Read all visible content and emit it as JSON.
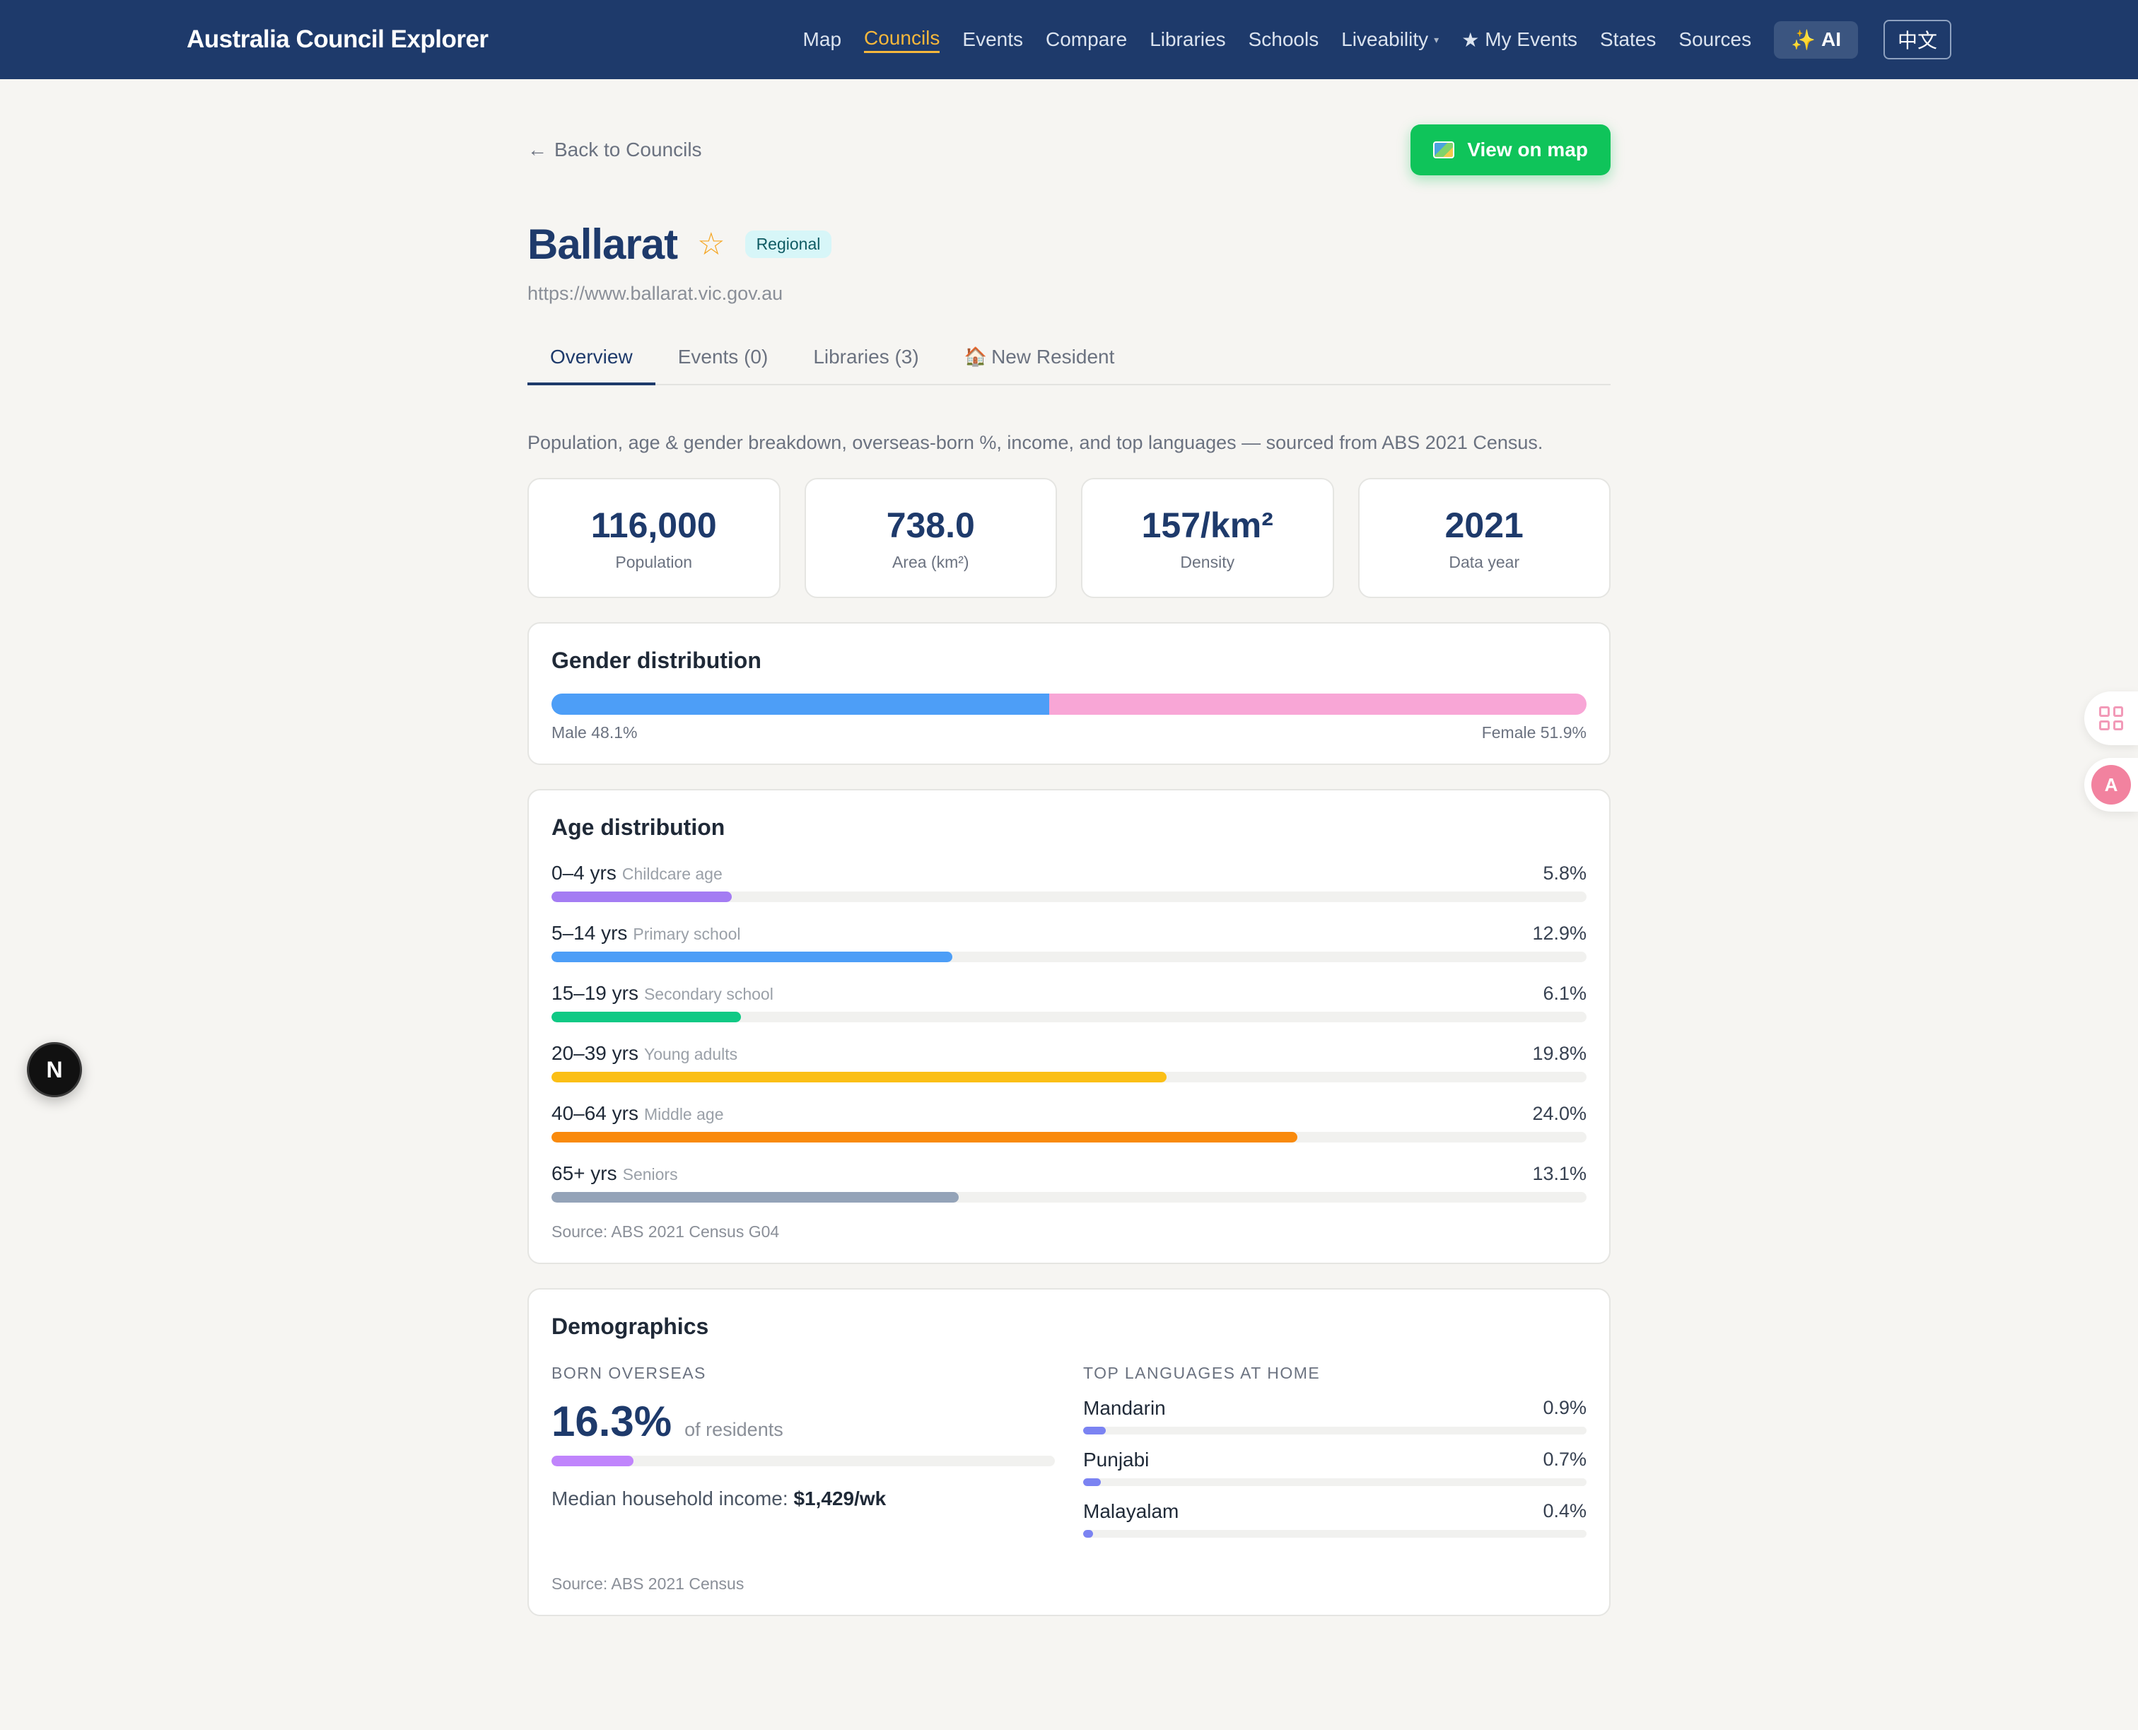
{
  "brand": "Australia Council Explorer",
  "nav": {
    "links": [
      {
        "label": "Map",
        "name": "nav-map"
      },
      {
        "label": "Councils",
        "name": "nav-councils",
        "active": true
      },
      {
        "label": "Events",
        "name": "nav-events"
      },
      {
        "label": "Compare",
        "name": "nav-compare"
      },
      {
        "label": "Libraries",
        "name": "nav-libraries"
      },
      {
        "label": "Schools",
        "name": "nav-schools"
      },
      {
        "label": "Liveability",
        "name": "nav-liveability"
      },
      {
        "label": "My Events",
        "name": "nav-my-events"
      },
      {
        "label": "States",
        "name": "nav-states"
      },
      {
        "label": "Sources",
        "name": "nav-sources"
      }
    ],
    "ai_label": "AI",
    "lang_label": "中文"
  },
  "back_label": "Back to Councils",
  "view_map_label": "View on map",
  "council": {
    "name": "Ballarat",
    "badge": "Regional",
    "url": "https://www.ballarat.vic.gov.au"
  },
  "tabs": [
    {
      "label": "Overview",
      "active": true
    },
    {
      "label": "Events (0)"
    },
    {
      "label": "Libraries (3)"
    },
    {
      "label": "New Resident"
    }
  ],
  "intro": "Population, age & gender breakdown, overseas-born %, income, and top languages — sourced from ABS 2021 Census.",
  "stats": [
    {
      "value": "116,000",
      "label": "Population"
    },
    {
      "value": "738.0",
      "label": "Area (km²)"
    },
    {
      "value": "157/km²",
      "label": "Density"
    },
    {
      "value": "2021",
      "label": "Data year"
    }
  ],
  "gender": {
    "title": "Gender distribution",
    "male_label": "Male 48.1%",
    "female_label": "Female 51.9%",
    "male_pct": 48.1,
    "female_pct": 51.9,
    "male_color": "#4d9ef7",
    "female_color": "#f8a6d6"
  },
  "age": {
    "title": "Age distribution",
    "max_pct": 33.3,
    "rows": [
      {
        "range": "0–4 yrs",
        "desc": "Childcare age",
        "pct_label": "5.8%",
        "pct": 5.8,
        "color": "#a47cf3"
      },
      {
        "range": "5–14 yrs",
        "desc": "Primary school",
        "pct_label": "12.9%",
        "pct": 12.9,
        "color": "#4d9ef7"
      },
      {
        "range": "15–19 yrs",
        "desc": "Secondary school",
        "pct_label": "6.1%",
        "pct": 6.1,
        "color": "#10c985"
      },
      {
        "range": "20–39 yrs",
        "desc": "Young adults",
        "pct_label": "19.8%",
        "pct": 19.8,
        "color": "#fbbf16"
      },
      {
        "range": "40–64 yrs",
        "desc": "Middle age",
        "pct_label": "24.0%",
        "pct": 24.0,
        "color": "#f98a0c"
      },
      {
        "range": "65+ yrs",
        "desc": "Seniors",
        "pct_label": "13.1%",
        "pct": 13.1,
        "color": "#94a3b8"
      }
    ],
    "source": "Source: ABS 2021 Census G04"
  },
  "demographics": {
    "title": "Demographics",
    "born_label": "BORN OVERSEAS",
    "born_pct_label": "16.3%",
    "born_pct": 16.3,
    "born_sub": "of residents",
    "born_color": "#c084fc",
    "income_label": "Median household income:",
    "income_value": "$1,429/wk",
    "lang_label": "TOP LANGUAGES AT HOME",
    "languages": [
      {
        "name": "Mandarin",
        "pct_label": "0.9%",
        "pct": 0.9
      },
      {
        "name": "Punjabi",
        "pct_label": "0.7%",
        "pct": 0.7
      },
      {
        "name": "Malayalam",
        "pct_label": "0.4%",
        "pct": 0.4
      }
    ],
    "lang_scale_max": 20,
    "source": "Source: ABS 2021 Census"
  }
}
